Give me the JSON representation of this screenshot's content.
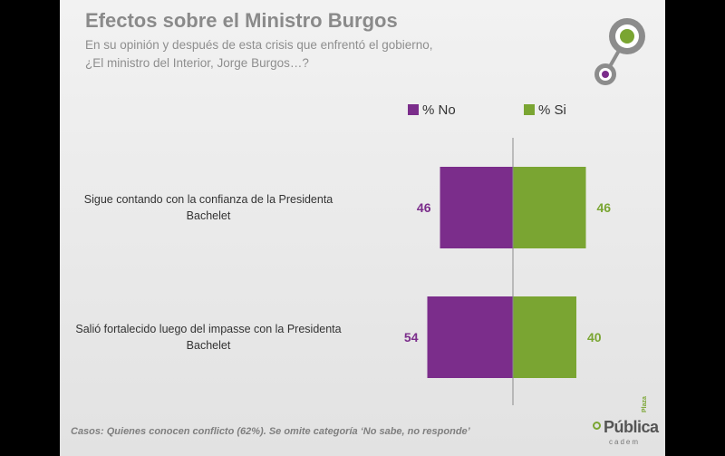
{
  "header": {
    "title": "Efectos sobre el Ministro Burgos",
    "subtitle_line1": "En su opinión y después de esta crisis que enfrentó el gobierno,",
    "subtitle_line2": "¿El ministro del Interior, Jorge Burgos…?"
  },
  "footer": {
    "note": "Casos: Quienes conocen conflicto (62%). Se omite categoría ‘No sabe, no responde’"
  },
  "logo": {
    "top": "Plaza",
    "main": "Pública",
    "bottom": "cadem"
  },
  "colors": {
    "no": "#7b2d8b",
    "si": "#7aa532",
    "deco_grey": "#8c8c8c"
  },
  "chart_data": {
    "type": "bar",
    "orientation": "diverging-horizontal",
    "categories": [
      [
        "Sigue contando con la confianza de la Presidenta",
        "Bachelet"
      ],
      [
        "Salió fortalecido luego del impasse con la Presidenta",
        "Bachelet"
      ]
    ],
    "series": [
      {
        "name": "% No",
        "values": [
          46,
          54
        ]
      },
      {
        "name": "% Si",
        "values": [
          46,
          40
        ]
      }
    ],
    "legend": "top-right"
  }
}
